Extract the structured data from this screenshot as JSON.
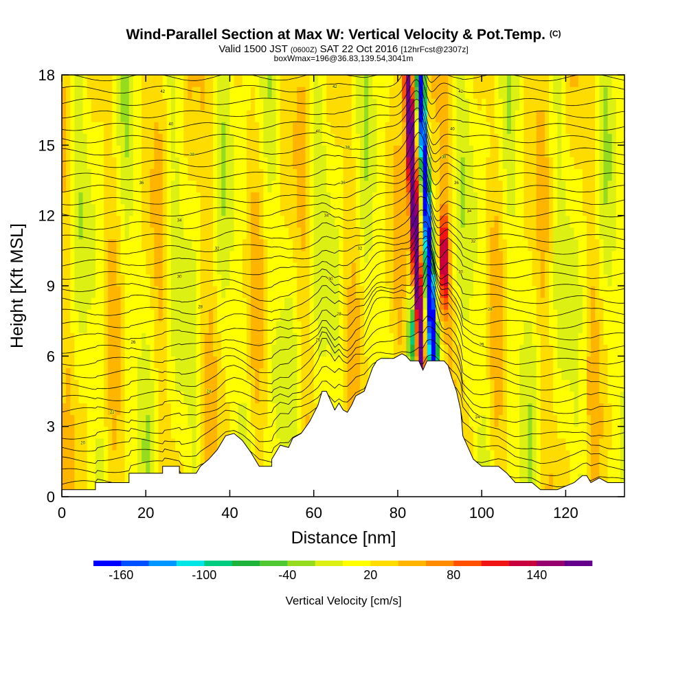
{
  "chart_data": {
    "type": "heatmap",
    "title": "Wind-Parallel Section at Max W: Vertical Velocity & Pot.Temp.",
    "title_suffix": "(C)",
    "subtitle_parts": [
      "Valid 1500 JST",
      "(0600Z)",
      "SAT 22 Oct 2016",
      "[12hrFcst@2307z]"
    ],
    "subtitle3": "boxWmax=196@36.83,139.54,3041m",
    "xlabel": "Distance [nm]",
    "ylabel": "Height [Kft MSL]",
    "xlim": [
      0,
      134
    ],
    "ylim": [
      0,
      18
    ],
    "xticks": [
      0,
      20,
      40,
      60,
      80,
      100,
      120
    ],
    "yticks": [
      0,
      3,
      6,
      9,
      12,
      15,
      18
    ],
    "colorbar": {
      "label": "Vertical Velocity [cm/s]",
      "range": [
        -180,
        180
      ],
      "step": 20,
      "tick_labels": [
        -160,
        -100,
        -40,
        20,
        80,
        140
      ],
      "colors": [
        "#0000ff",
        "#0050ff",
        "#0096ff",
        "#00e6e6",
        "#00cc80",
        "#1eb43c",
        "#50c832",
        "#96dc1e",
        "#dcf014",
        "#ffff00",
        "#ffdc00",
        "#ffb400",
        "#ff8c00",
        "#ff5000",
        "#f01414",
        "#c8003c",
        "#96006e",
        "#64008c"
      ]
    },
    "terrain_height_kft": [
      [
        0,
        0.3
      ],
      [
        8,
        0.3
      ],
      [
        8,
        0.6
      ],
      [
        16,
        0.6
      ],
      [
        16,
        1.0
      ],
      [
        24,
        1.0
      ],
      [
        24,
        1.3
      ],
      [
        28,
        1.3
      ],
      [
        28,
        1.0
      ],
      [
        32,
        1.0
      ],
      [
        33,
        1.3
      ],
      [
        35,
        1.6
      ],
      [
        37,
        2.0
      ],
      [
        39,
        2.6
      ],
      [
        41,
        2.7
      ],
      [
        43,
        2.4
      ],
      [
        45,
        1.9
      ],
      [
        46,
        1.6
      ],
      [
        47,
        1.3
      ],
      [
        50,
        1.3
      ],
      [
        50,
        1.6
      ],
      [
        51,
        1.9
      ],
      [
        52,
        2.2
      ],
      [
        54,
        2.1
      ],
      [
        55,
        2.5
      ],
      [
        57,
        2.7
      ],
      [
        59,
        3.2
      ],
      [
        61,
        3.9
      ],
      [
        62,
        4.5
      ],
      [
        63,
        4.5
      ],
      [
        65,
        3.7
      ],
      [
        66,
        4.0
      ],
      [
        67,
        3.7
      ],
      [
        68,
        3.6
      ],
      [
        69,
        3.9
      ],
      [
        70,
        4.3
      ],
      [
        72,
        4.5
      ],
      [
        73,
        5.0
      ],
      [
        74,
        5.5
      ],
      [
        75,
        5.8
      ],
      [
        76,
        5.9
      ],
      [
        79,
        5.9
      ],
      [
        80,
        6.0
      ],
      [
        81,
        6.1
      ],
      [
        82,
        6.0
      ],
      [
        83,
        5.8
      ],
      [
        85,
        5.8
      ],
      [
        86,
        5.4
      ],
      [
        87,
        5.8
      ],
      [
        89,
        5.8
      ],
      [
        91,
        5.8
      ],
      [
        92,
        5.6
      ],
      [
        93,
        5.0
      ],
      [
        94,
        4.5
      ],
      [
        95,
        3.7
      ],
      [
        95.5,
        2.6
      ],
      [
        97,
        2.0
      ],
      [
        98,
        1.6
      ],
      [
        100,
        1.3
      ],
      [
        104,
        1.3
      ],
      [
        106,
        1.0
      ],
      [
        108,
        0.6
      ],
      [
        112,
        0.6
      ],
      [
        114,
        0.3
      ],
      [
        118,
        0.3
      ],
      [
        122,
        0.6
      ],
      [
        124,
        0.9
      ],
      [
        125,
        0.9
      ],
      [
        126,
        0.6
      ],
      [
        128,
        0.8
      ],
      [
        130,
        0.6
      ],
      [
        134,
        0.6
      ]
    ],
    "theta_contour_labels": [
      {
        "text": "42",
        "x": 24,
        "y": 17.3
      },
      {
        "text": "40",
        "x": 26,
        "y": 15.9
      },
      {
        "text": "38",
        "x": 31,
        "y": 14.6
      },
      {
        "text": "36",
        "x": 19,
        "y": 13.4
      },
      {
        "text": "34",
        "x": 28,
        "y": 11.8
      },
      {
        "text": "32",
        "x": 37,
        "y": 10.6
      },
      {
        "text": "30",
        "x": 28,
        "y": 9.4
      },
      {
        "text": "28",
        "x": 33,
        "y": 8.1
      },
      {
        "text": "26",
        "x": 17,
        "y": 6.6
      },
      {
        "text": "24",
        "x": 35,
        "y": 4.5
      },
      {
        "text": "22",
        "x": 12,
        "y": 3.6
      },
      {
        "text": "20",
        "x": 5,
        "y": 2.3
      },
      {
        "text": "42",
        "x": 65,
        "y": 17.5
      },
      {
        "text": "40",
        "x": 61,
        "y": 15.6
      },
      {
        "text": "38",
        "x": 68,
        "y": 14.9
      },
      {
        "text": "36",
        "x": 67,
        "y": 13.4
      },
      {
        "text": "34",
        "x": 63,
        "y": 12.0
      },
      {
        "text": "32",
        "x": 71,
        "y": 10.6
      },
      {
        "text": "30",
        "x": 64,
        "y": 9.3
      },
      {
        "text": "28",
        "x": 66,
        "y": 7.8
      },
      {
        "text": "26",
        "x": 61,
        "y": 6.7
      },
      {
        "text": "42",
        "x": 95,
        "y": 17.3
      },
      {
        "text": "40",
        "x": 93,
        "y": 15.7
      },
      {
        "text": "38",
        "x": 91,
        "y": 14.5
      },
      {
        "text": "36",
        "x": 94,
        "y": 13.4
      },
      {
        "text": "34",
        "x": 97,
        "y": 12.2
      },
      {
        "text": "32",
        "x": 98,
        "y": 10.9
      },
      {
        "text": "30",
        "x": 95,
        "y": 9.6
      },
      {
        "text": "28",
        "x": 102,
        "y": 8.0
      },
      {
        "text": "26",
        "x": 100,
        "y": 6.5
      },
      {
        "text": "24",
        "x": 99,
        "y": 3.4
      }
    ]
  }
}
